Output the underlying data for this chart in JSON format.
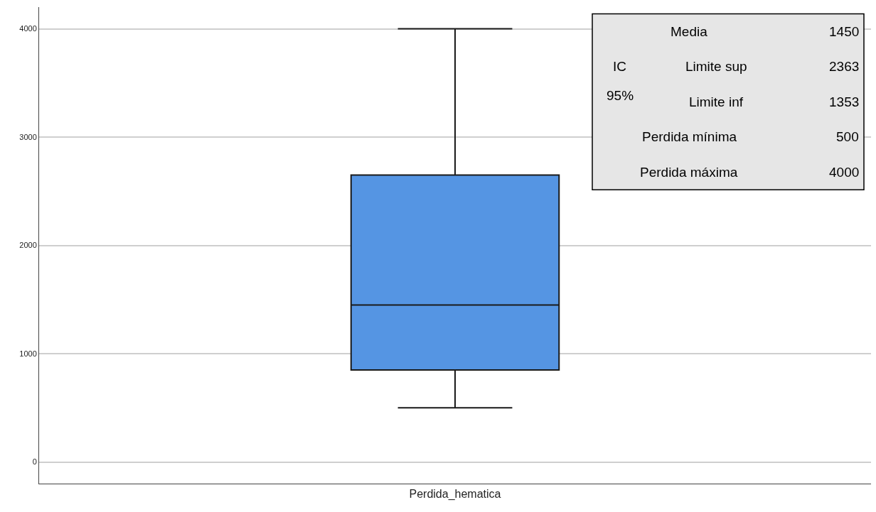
{
  "chart_data": {
    "type": "box",
    "categories": [
      "Perdida_hematica"
    ],
    "boxes": [
      {
        "low": 500,
        "q1": 850,
        "median": 1450,
        "q3": 2650,
        "high": 4000
      }
    ],
    "color": "#5595e3",
    "ylim": [
      -200,
      4200
    ],
    "yticks": [
      0,
      1000,
      2000,
      3000,
      4000
    ],
    "grid": "y",
    "legend": false,
    "annotations": [
      "Media",
      "1450",
      "IC",
      "95%",
      "Limite sup",
      "2363",
      "Limite inf",
      "1353",
      "Perdida mínima",
      "500",
      "Perdida máxima",
      "4000"
    ]
  }
}
